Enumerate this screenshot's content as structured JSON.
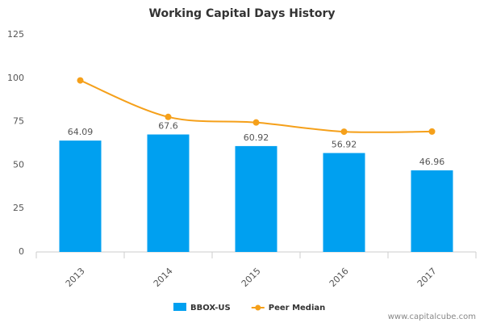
{
  "chart_data": {
    "type": "bar",
    "title": "Working Capital Days History",
    "categories": [
      "2013",
      "2014",
      "2015",
      "2016",
      "2017"
    ],
    "series": [
      {
        "name": "BBOX-US",
        "type": "bar",
        "color": "#00a0f0",
        "values": [
          64.09,
          67.6,
          60.92,
          56.92,
          46.96
        ]
      },
      {
        "name": "Peer Median",
        "type": "line",
        "color": "#f5a01a",
        "values": [
          98.7,
          77.7,
          74.5,
          69.2,
          69.3
        ]
      }
    ],
    "ylim": [
      0,
      125
    ],
    "yticks": [
      0,
      25,
      50,
      75,
      100,
      125
    ],
    "grid": false,
    "legend": "bottom",
    "watermark": "www.capitalcube.com"
  }
}
